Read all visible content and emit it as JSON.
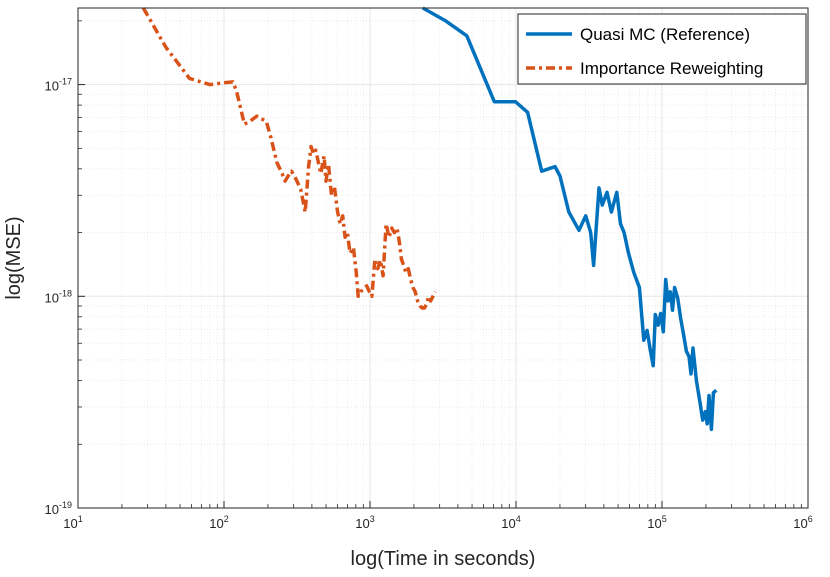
{
  "chart_data": {
    "type": "line",
    "xscale": "log",
    "yscale": "log",
    "xlabel": "log(Time in seconds)",
    "ylabel": "log(MSE)",
    "xlim": [
      10,
      1000000
    ],
    "ylim": [
      1e-19,
      2.3e-17
    ],
    "grid": true,
    "legend_position": "top-right",
    "x_ticks": [
      {
        "base": "10",
        "exp": "1"
      },
      {
        "base": "10",
        "exp": "2"
      },
      {
        "base": "10",
        "exp": "3"
      },
      {
        "base": "10",
        "exp": "4"
      },
      {
        "base": "10",
        "exp": "5"
      },
      {
        "base": "10",
        "exp": "6"
      }
    ],
    "y_ticks": [
      {
        "base": "10",
        "exp": "-19"
      },
      {
        "base": "10",
        "exp": "-18"
      },
      {
        "base": "10",
        "exp": "-17"
      }
    ],
    "series": [
      {
        "name": "Quasi MC (Reference)",
        "color": "#0072BD",
        "style": "solid",
        "x": [
          2300,
          3300,
          4600,
          7100,
          9900,
          12000,
          15000,
          18500,
          20000,
          23000,
          27000,
          30000,
          32500,
          34000,
          37000,
          39000,
          42000,
          45000,
          49000,
          52000,
          55000,
          59000,
          64000,
          70000,
          75000,
          79000,
          83000,
          87000,
          90000,
          94000,
          98000,
          102000,
          106000,
          110000,
          114000,
          118000,
          122000,
          128000,
          134000,
          140000,
          147000,
          153000,
          158000,
          163000,
          172000,
          182000,
          190000,
          198000,
          204000,
          210000,
          218000,
          225000,
          235000
        ],
        "y": [
          2.3e-17,
          2e-17,
          1.7e-17,
          8.3e-18,
          8.3e-18,
          7.4e-18,
          3.9e-18,
          4.1e-18,
          3.7e-18,
          2.5e-18,
          2.05e-18,
          2.4e-18,
          2e-18,
          1.4e-18,
          3.25e-18,
          2.7e-18,
          3.1e-18,
          2.5e-18,
          3.1e-18,
          2.2e-18,
          2e-18,
          1.6e-18,
          1.3e-18,
          1.1e-18,
          6.2e-19,
          6.9e-19,
          5.6e-19,
          4.7e-19,
          8.2e-19,
          7.3e-19,
          8.3e-19,
          6.8e-19,
          1.2e-18,
          9.5e-19,
          1.05e-18,
          8.6e-19,
          1.1e-18,
          9.8e-19,
          7.9e-19,
          6.7e-19,
          5.5e-19,
          5.2e-19,
          4.3e-19,
          5.7e-19,
          4e-19,
          3.15e-19,
          2.6e-19,
          2.85e-19,
          2.5e-19,
          3.4e-19,
          2.35e-19,
          3.5e-19,
          3.6e-19
        ]
      },
      {
        "name": "Importance Reweighting",
        "color": "#D95319",
        "style": "dashdot",
        "x": [
          28,
          40,
          58,
          80,
          100,
          115,
          122,
          138,
          150,
          168,
          180,
          195,
          210,
          230,
          250,
          262,
          275,
          290,
          310,
          335,
          360,
          380,
          395,
          410,
          425,
          440,
          460,
          485,
          500,
          520,
          545,
          570,
          600,
          625,
          650,
          675,
          700,
          730,
          770,
          805,
          830,
          860,
          900,
          950,
          990,
          1030,
          1080,
          1130,
          1180,
          1230,
          1290,
          1350,
          1410,
          1470,
          1530,
          1590,
          1640,
          1700,
          1760,
          1830,
          1900,
          1970,
          2040,
          2120,
          2200,
          2280,
          2360,
          2440,
          2520,
          2600,
          2700,
          2800
        ],
        "y": [
          2.3e-17,
          1.5e-17,
          1.07e-17,
          1e-17,
          1.02e-17,
          1.03e-17,
          9.3e-18,
          6.5e-18,
          6.7e-18,
          7.1e-18,
          6.9e-18,
          6.7e-18,
          5.6e-18,
          4.3e-18,
          3.8e-18,
          3.5e-18,
          3.7e-18,
          3.9e-18,
          3.6e-18,
          3.2e-18,
          2.5e-18,
          4.1e-18,
          5.1e-18,
          4.7e-18,
          4.9e-18,
          4.4e-18,
          3.8e-18,
          4.6e-18,
          3.5e-18,
          4.2e-18,
          3e-18,
          3.3e-18,
          2.5e-18,
          2.2e-18,
          2.4e-18,
          1.9e-18,
          2e-18,
          1.6e-18,
          1.7e-18,
          1.3e-18,
          1e-18,
          1.05e-18,
          1.08e-18,
          1.12e-18,
          1.05e-18,
          1e-18,
          1.5e-18,
          1.35e-18,
          1.48e-18,
          1.25e-18,
          2.2e-18,
          1.9e-18,
          2.1e-18,
          2e-18,
          2.1e-18,
          1.8e-18,
          1.5e-18,
          1.4e-18,
          1.3e-18,
          1.35e-18,
          1.2e-18,
          1.1e-18,
          1.05e-18,
          9.5e-19,
          9e-19,
          8.8e-19,
          8.8e-19,
          9.2e-19,
          1e-18,
          9.5e-19,
          1e-18,
          1.05e-18
        ]
      }
    ]
  }
}
